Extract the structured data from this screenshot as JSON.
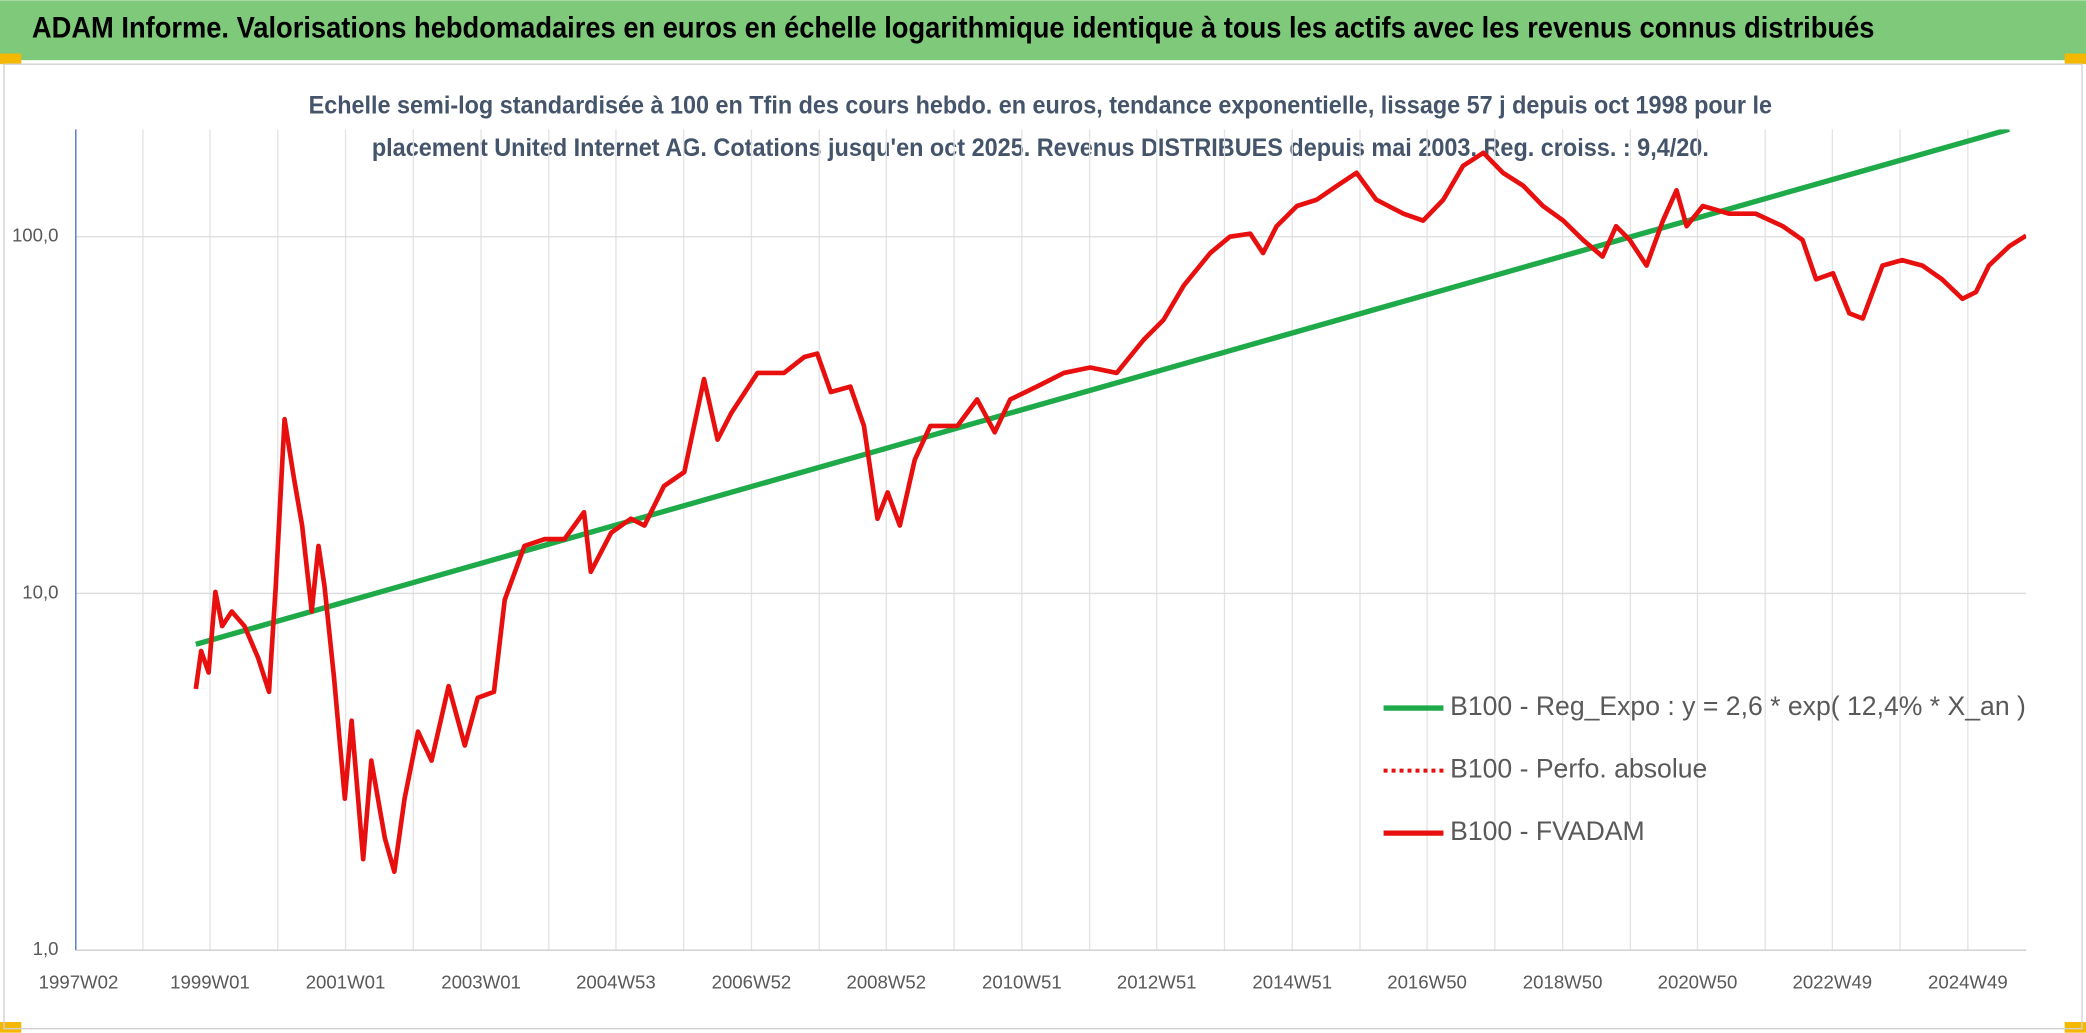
{
  "chart_data": {
    "type": "line",
    "title": "ADAM Informe. Valorisations hebdomadaires en euros en échelle logarithmique identique à tous les actifs avec les revenus connus distribués",
    "subtitle": [
      "Echelle semi-log standardisée à 100 en Tfin des cours hebdo. en euros, tendance exponentielle, lissage 57 j depuis oct 1998 pour le",
      "placement United Internet AG. Cotations jusqu'en oct 2025. Revenus DISTRIBUES depuis mai 2003. Reg. croiss. : 9,4/20."
    ],
    "log_y": true,
    "ylim": [
      1,
      200
    ],
    "yticks": [
      {
        "value": 1,
        "label": "1,0"
      },
      {
        "value": 10,
        "label": "10,0"
      },
      {
        "value": 100,
        "label": "100,0"
      }
    ],
    "xlim": [
      1997.02,
      2025.8
    ],
    "xticks": [
      {
        "value": 1997.02,
        "label": "1997W02"
      },
      {
        "value": 1999.0,
        "label": "1999W01"
      },
      {
        "value": 2001.0,
        "label": "2001W01"
      },
      {
        "value": 2003.0,
        "label": "2003W01"
      },
      {
        "value": 2004.99,
        "label": "2004W53"
      },
      {
        "value": 2006.99,
        "label": "2006W52"
      },
      {
        "value": 2008.98,
        "label": "2008W52"
      },
      {
        "value": 2010.98,
        "label": "2010W51"
      },
      {
        "value": 2012.97,
        "label": "2012W51"
      },
      {
        "value": 2014.97,
        "label": "2014W51"
      },
      {
        "value": 2016.96,
        "label": "2016W50"
      },
      {
        "value": 2018.96,
        "label": "2018W50"
      },
      {
        "value": 2020.95,
        "label": "2020W50"
      },
      {
        "value": 2022.94,
        "label": "2022W49"
      },
      {
        "value": 2024.94,
        "label": "2024W49"
      }
    ],
    "xminor_grid": [
      1998.01,
      2000.0,
      2002.0,
      2004.0,
      2005.99,
      2007.99,
      2009.98,
      2011.98,
      2013.97,
      2015.97,
      2017.96,
      2019.96,
      2021.95,
      2023.94,
      2025.94
    ],
    "grid": true,
    "legend": "right",
    "series": [
      {
        "name": "B100 - Reg_Expo : y = 2,6 * exp( 12,4% *  X_an )",
        "color": "#1faa4a",
        "style": "solid",
        "x": [
          1998.79,
          2025.55
        ],
        "values": [
          7.2,
          200
        ]
      },
      {
        "name": "B100 - Perfo. absolue",
        "color": "#e8100f",
        "style": "dotted",
        "x": [],
        "values": []
      },
      {
        "name": "B100 - FVADAM",
        "color": "#e8100f",
        "style": "solid",
        "x": [
          1998.79,
          1998.87,
          1998.98,
          1999.08,
          1999.18,
          1999.32,
          1999.51,
          1999.71,
          1999.87,
          1999.97,
          2000.1,
          2000.24,
          2000.36,
          2000.5,
          2000.6,
          2000.69,
          2000.83,
          2000.99,
          2001.09,
          2001.26,
          2001.38,
          2001.58,
          2001.72,
          2001.87,
          2002.07,
          2002.27,
          2002.52,
          2002.76,
          2002.95,
          2003.19,
          2003.35,
          2003.64,
          2003.94,
          2004.23,
          2004.52,
          2004.62,
          2004.92,
          2005.21,
          2005.41,
          2005.7,
          2006.0,
          2006.29,
          2006.49,
          2006.69,
          2007.08,
          2007.47,
          2007.77,
          2007.96,
          2008.16,
          2008.45,
          2008.65,
          2008.85,
          2009.0,
          2009.18,
          2009.4,
          2009.63,
          2010.03,
          2010.32,
          2010.58,
          2010.81,
          2011.2,
          2011.6,
          2011.99,
          2012.38,
          2012.78,
          2013.07,
          2013.37,
          2013.76,
          2014.05,
          2014.35,
          2014.54,
          2014.74,
          2015.04,
          2015.33,
          2015.63,
          2015.92,
          2016.21,
          2016.61,
          2016.9,
          2017.2,
          2017.49,
          2017.79,
          2018.08,
          2018.38,
          2018.67,
          2018.97,
          2019.26,
          2019.55,
          2019.75,
          2019.95,
          2020.2,
          2020.44,
          2020.64,
          2020.79,
          2021.03,
          2021.42,
          2021.81,
          2022.21,
          2022.5,
          2022.7,
          2022.95,
          2023.19,
          2023.39,
          2023.68,
          2023.97,
          2024.27,
          2024.56,
          2024.86,
          2025.06,
          2025.25,
          2025.55,
          2025.8
        ],
        "values": [
          5.4,
          6.9,
          6.0,
          10.1,
          8.1,
          8.9,
          8.1,
          6.6,
          5.3,
          10.5,
          30.8,
          21,
          15.5,
          8.9,
          13.6,
          10.5,
          5.8,
          2.66,
          4.4,
          1.8,
          3.4,
          2.06,
          1.66,
          2.66,
          4.1,
          3.4,
          5.5,
          3.75,
          5.1,
          5.3,
          9.6,
          13.6,
          14.2,
          14.2,
          16.9,
          11.5,
          14.8,
          16.2,
          15.5,
          20,
          21.9,
          39.9,
          27,
          32,
          41.5,
          41.5,
          46,
          47,
          36.7,
          38,
          29.5,
          16.2,
          19.2,
          15.5,
          23.7,
          29.5,
          29.5,
          35,
          28.3,
          35,
          38,
          41.5,
          43,
          41.5,
          51.5,
          58.5,
          73,
          90,
          100,
          102,
          90,
          107,
          122,
          127,
          139,
          151,
          127,
          116,
          111,
          127,
          158,
          172,
          151,
          139,
          122,
          111,
          98,
          88,
          107,
          98,
          83,
          111,
          135,
          107,
          122,
          116,
          116,
          107,
          98,
          76,
          79,
          61,
          59,
          83,
          86,
          83,
          76,
          67,
          70,
          83,
          94,
          100.7
        ]
      }
    ]
  }
}
